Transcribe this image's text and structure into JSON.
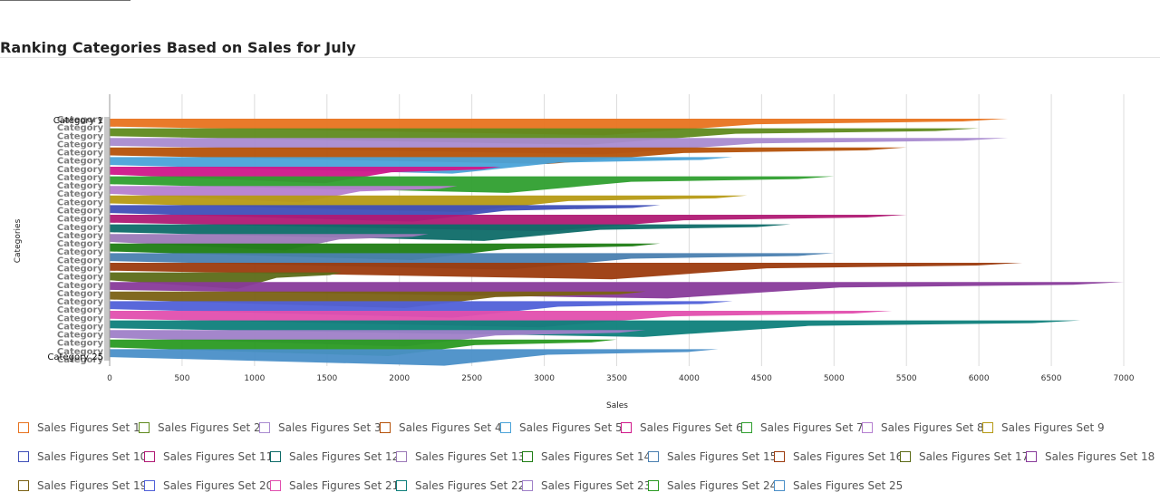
{
  "page": {
    "title": "Ranking Categories Based on Sales for July"
  },
  "chart_data": {
    "type": "bar",
    "orientation": "horizontal",
    "title": "Ranking Categories Based on Sales for July",
    "xlabel": "Sales",
    "ylabel": "Categories",
    "xlim": [
      0,
      7000
    ],
    "xticks": [
      0,
      500,
      1000,
      1500,
      2000,
      2500,
      3000,
      3500,
      4000,
      4500,
      5000,
      5500,
      6000,
      6500,
      7000
    ],
    "grid": true,
    "legend_position": "bottom",
    "category_label_top": "Category 1",
    "category_label_bottom": "Category 25",
    "series": [
      {
        "name": "Sales Figures Set 1",
        "color": "#e8731f",
        "value": 6200
      },
      {
        "name": "Sales Figures Set 2",
        "color": "#5f8a1e",
        "value": 6000
      },
      {
        "name": "Sales Figures Set 3",
        "color": "#a98bd0",
        "value": 6200
      },
      {
        "name": "Sales Figures Set 4",
        "color": "#b5520a",
        "value": 5500
      },
      {
        "name": "Sales Figures Set 5",
        "color": "#4aa3d9",
        "value": 4300
      },
      {
        "name": "Sales Figures Set 6",
        "color": "#d0178a",
        "value": 2700
      },
      {
        "name": "Sales Figures Set 7",
        "color": "#2f9f2f",
        "value": 5000
      },
      {
        "name": "Sales Figures Set 8",
        "color": "#b57fd0",
        "value": 2400
      },
      {
        "name": "Sales Figures Set 9",
        "color": "#b69a14",
        "value": 4400
      },
      {
        "name": "Sales Figures Set 10",
        "color": "#3f4fb8",
        "value": 3800
      },
      {
        "name": "Sales Figures Set 11",
        "color": "#b01a74",
        "value": 5500
      },
      {
        "name": "Sales Figures Set 12",
        "color": "#0e6b68",
        "value": 4700
      },
      {
        "name": "Sales Figures Set 13",
        "color": "#9c79b8",
        "value": 2200
      },
      {
        "name": "Sales Figures Set 14",
        "color": "#1f7d14",
        "value": 3800
      },
      {
        "name": "Sales Figures Set 15",
        "color": "#4a7fb0",
        "value": 5000
      },
      {
        "name": "Sales Figures Set 16",
        "color": "#9c3b0e",
        "value": 6300
      },
      {
        "name": "Sales Figures Set 17",
        "color": "#5c6b18",
        "value": 1600
      },
      {
        "name": "Sales Figures Set 18",
        "color": "#883a9a",
        "value": 7000
      },
      {
        "name": "Sales Figures Set 19",
        "color": "#7a6114",
        "value": 3700
      },
      {
        "name": "Sales Figures Set 20",
        "color": "#5060d8",
        "value": 4300
      },
      {
        "name": "Sales Figures Set 21",
        "color": "#e14fae",
        "value": 5400
      },
      {
        "name": "Sales Figures Set 22",
        "color": "#0e7f7b",
        "value": 6700
      },
      {
        "name": "Sales Figures Set 23",
        "color": "#9f80c8",
        "value": 3700
      },
      {
        "name": "Sales Figures Set 24",
        "color": "#2a9a22",
        "value": 3500
      },
      {
        "name": "Sales Figures Set 25",
        "color": "#4a8fc8",
        "value": 4200
      }
    ]
  }
}
